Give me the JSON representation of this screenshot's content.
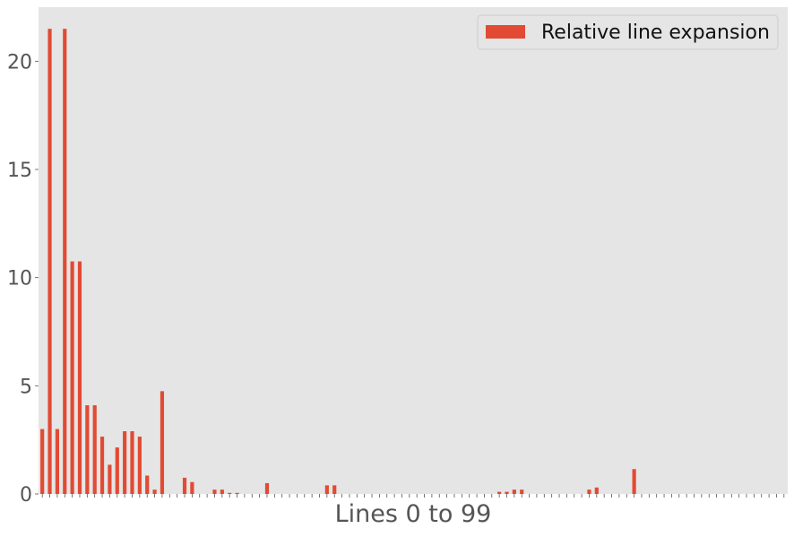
{
  "chart_data": {
    "type": "bar",
    "xlabel": "Lines 0 to 99",
    "ylabel": "",
    "ylim": [
      0,
      22.5
    ],
    "yticks": [
      0,
      5,
      10,
      15,
      20
    ],
    "grid": false,
    "legend_position": "top-right",
    "series": [
      {
        "name": "Relative line expansion",
        "color": "#E24A33",
        "values": [
          3.0,
          21.5,
          3.0,
          21.5,
          10.75,
          10.75,
          4.1,
          4.1,
          2.65,
          1.35,
          2.15,
          2.9,
          2.9,
          2.65,
          0.85,
          0.2,
          4.75,
          0,
          0,
          0.75,
          0.55,
          0,
          0,
          0.2,
          0.2,
          0.05,
          0.05,
          0,
          0,
          0,
          0.5,
          0,
          0,
          0,
          0,
          0,
          0,
          0,
          0.4,
          0.4,
          0,
          0,
          0,
          0,
          0,
          0,
          0,
          0,
          0,
          0,
          0,
          0,
          0,
          0,
          0,
          0,
          0,
          0,
          0,
          0,
          0,
          0.1,
          0.1,
          0.2,
          0.2,
          0,
          0,
          0,
          0,
          0,
          0,
          0,
          0,
          0.2,
          0.3,
          0,
          0,
          0,
          0,
          1.15,
          0,
          0,
          0,
          0,
          0,
          0,
          0,
          0,
          0,
          0,
          0,
          0,
          0,
          0,
          0,
          0,
          0,
          0,
          0,
          0
        ]
      }
    ]
  },
  "colors": {
    "plot_background": "#E5E5E5",
    "tick_text": "#555555"
  }
}
